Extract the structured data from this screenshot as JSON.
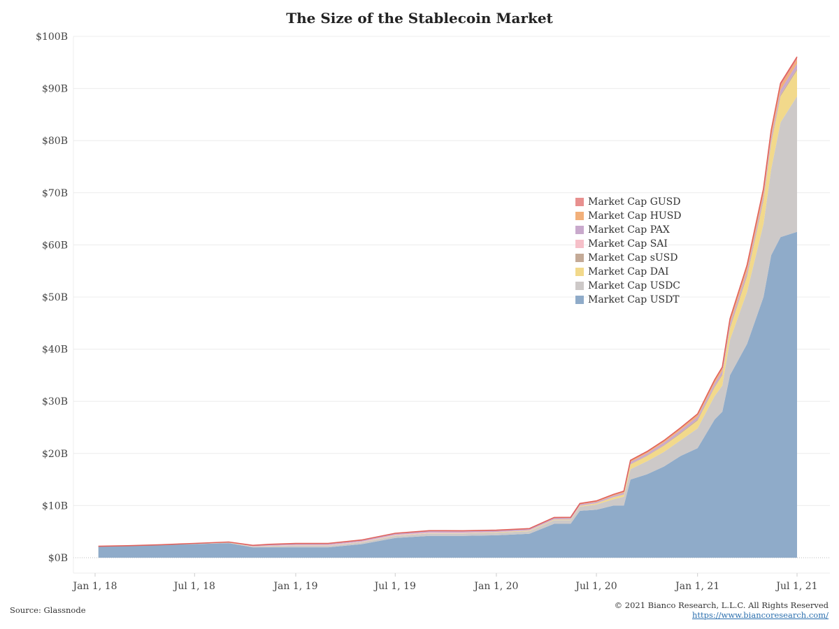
{
  "chart_data": {
    "type": "area",
    "stacked": true,
    "title": "The Size of the Stablecoin Market",
    "xlabel": "",
    "ylabel": "",
    "ylim": [
      0,
      100
    ],
    "y_unit": "$B",
    "y_ticks": [
      "$0B",
      "$10B",
      "$20B",
      "$30B",
      "$40B",
      "$50B",
      "$60B",
      "$70B",
      "$80B",
      "$90B",
      "$100B"
    ],
    "x_ticks": [
      "Jan 1, 18",
      "Jul 1, 18",
      "Jan 1, 19",
      "Jul 1, 19",
      "Jan 1, 20",
      "Jul 1, 20",
      "Jan 1, 21",
      "Jul 1, 21"
    ],
    "grid": true,
    "legend_position": "center-right",
    "x": [
      "2018-01-07",
      "2018-03-01",
      "2018-05-01",
      "2018-07-01",
      "2018-09-01",
      "2018-10-15",
      "2018-11-15",
      "2019-01-01",
      "2019-03-01",
      "2019-05-01",
      "2019-07-01",
      "2019-09-01",
      "2019-11-01",
      "2020-01-01",
      "2020-03-01",
      "2020-04-15",
      "2020-05-15",
      "2020-06-01",
      "2020-07-01",
      "2020-08-01",
      "2020-08-20",
      "2020-09-01",
      "2020-10-01",
      "2020-11-01",
      "2020-12-01",
      "2021-01-01",
      "2021-02-01",
      "2021-02-15",
      "2021-03-01",
      "2021-04-01",
      "2021-05-01",
      "2021-05-15",
      "2021-06-01",
      "2021-07-01"
    ],
    "series": [
      {
        "name": "Market Cap USDT",
        "color": "#8fabc9",
        "values": [
          2.2,
          2.3,
          2.5,
          2.6,
          2.8,
          2.0,
          2.0,
          2.0,
          2.0,
          2.6,
          3.8,
          4.2,
          4.2,
          4.3,
          4.6,
          6.5,
          6.5,
          9.0,
          9.2,
          10.0,
          10.0,
          15.0,
          16.0,
          17.5,
          19.5,
          21.0,
          26.5,
          28.0,
          35.0,
          41.0,
          50.0,
          58.0,
          61.5,
          62.5
        ]
      },
      {
        "name": "Market Cap USDC",
        "color": "#cdc9c8",
        "values": [
          0,
          0,
          0,
          0.1,
          0.1,
          0.1,
          0.2,
          0.3,
          0.3,
          0.35,
          0.4,
          0.45,
          0.45,
          0.5,
          0.5,
          0.7,
          0.7,
          0.8,
          1.0,
          1.2,
          1.7,
          2.0,
          2.5,
          2.8,
          3.0,
          3.8,
          4.5,
          5.0,
          6.8,
          10.0,
          14.0,
          16.5,
          22.0,
          26.0
        ]
      },
      {
        "name": "Market Cap DAI",
        "color": "#f2d98b",
        "values": [
          0,
          0,
          0,
          0.05,
          0.05,
          0.05,
          0.05,
          0.05,
          0.05,
          0.05,
          0.05,
          0.05,
          0.06,
          0.08,
          0.1,
          0.12,
          0.12,
          0.13,
          0.2,
          0.35,
          0.4,
          0.9,
          1.0,
          1.2,
          1.3,
          1.5,
          1.7,
          2.0,
          2.2,
          3.0,
          4.5,
          5.0,
          5.0,
          5.0
        ]
      },
      {
        "name": "Market Cap sUSD",
        "color": "#c4aa97",
        "values": [
          0,
          0,
          0,
          0,
          0,
          0,
          0,
          0,
          0,
          0,
          0.02,
          0.02,
          0.02,
          0.02,
          0.02,
          0.02,
          0.02,
          0.03,
          0.03,
          0.05,
          0.05,
          0.08,
          0.1,
          0.12,
          0.15,
          0.2,
          0.2,
          0.2,
          0.25,
          0.3,
          0.3,
          0.3,
          0.3,
          0.3
        ]
      },
      {
        "name": "Market Cap SAI",
        "color": "#f6c0c9",
        "values": [
          0,
          0,
          0,
          0,
          0,
          0.02,
          0.05,
          0.08,
          0.08,
          0.08,
          0.1,
          0.12,
          0.1,
          0.05,
          0.03,
          0.02,
          0.02,
          0.02,
          0.02,
          0.02,
          0.02,
          0.02,
          0.02,
          0.02,
          0.02,
          0.02,
          0.02,
          0.02,
          0.02,
          0.02,
          0.02,
          0.02,
          0.02,
          0.02
        ]
      },
      {
        "name": "Market Cap PAX",
        "color": "#c9a9cc",
        "values": [
          0,
          0,
          0,
          0,
          0.05,
          0.15,
          0.2,
          0.2,
          0.2,
          0.2,
          0.22,
          0.25,
          0.24,
          0.23,
          0.23,
          0.24,
          0.24,
          0.25,
          0.25,
          0.28,
          0.3,
          0.35,
          0.4,
          0.45,
          0.5,
          0.5,
          0.55,
          0.6,
          0.65,
          0.7,
          0.75,
          0.85,
          0.9,
          0.95
        ]
      },
      {
        "name": "Market Cap HUSD",
        "color": "#f2b07a",
        "values": [
          0,
          0,
          0,
          0,
          0,
          0,
          0,
          0,
          0,
          0,
          0,
          0,
          0,
          0,
          0.01,
          0.02,
          0.05,
          0.07,
          0.1,
          0.15,
          0.2,
          0.25,
          0.25,
          0.3,
          0.35,
          0.4,
          0.45,
          0.5,
          0.6,
          0.7,
          0.75,
          0.8,
          0.8,
          0.8
        ]
      },
      {
        "name": "Market Cap GUSD",
        "color": "#e8908f",
        "values": [
          0,
          0,
          0,
          0,
          0.02,
          0.05,
          0.08,
          0.1,
          0.12,
          0.12,
          0.1,
          0.1,
          0.1,
          0.1,
          0.1,
          0.1,
          0.1,
          0.1,
          0.1,
          0.1,
          0.1,
          0.1,
          0.1,
          0.1,
          0.1,
          0.15,
          0.2,
          0.25,
          0.3,
          0.4,
          0.45,
          0.5,
          0.5,
          0.5
        ]
      }
    ]
  },
  "legend_items": [
    {
      "label": "Market Cap GUSD",
      "color": "#e8908f"
    },
    {
      "label": "Market Cap HUSD",
      "color": "#f2b07a"
    },
    {
      "label": "Market Cap PAX",
      "color": "#c9a9cc"
    },
    {
      "label": "Market Cap SAI",
      "color": "#f6c0c9"
    },
    {
      "label": "Market Cap sUSD",
      "color": "#c4aa97"
    },
    {
      "label": "Market Cap DAI",
      "color": "#f2d98b"
    },
    {
      "label": "Market Cap USDC",
      "color": "#cdc9c8"
    },
    {
      "label": "Market Cap USDT",
      "color": "#8fabc9"
    }
  ],
  "footer": {
    "source": "Source: Glassnode",
    "copyright": "© 2021 Bianco Research, L.L.C. All Rights Reserved",
    "url": "https://www.biancoresearch.com/"
  },
  "colors": {
    "top_outline": "#e0625c",
    "grid": "#ececec"
  }
}
